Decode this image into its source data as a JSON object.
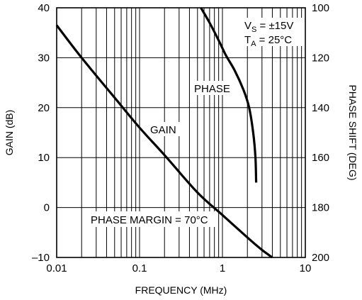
{
  "chart_data": {
    "type": "line",
    "xlabel": "FREQUENCY (MHz)",
    "ylabel_left": "GAIN (dB)",
    "ylabel_right": "PHASE SHIFT (DEG)",
    "x_scale": "log",
    "xlim": [
      0.01,
      10
    ],
    "ylim_left": [
      -10,
      40
    ],
    "ylim_right": [
      100,
      200
    ],
    "right_axis_inverted": true,
    "x_ticks": [
      {
        "value": 0.01,
        "label": "0.01"
      },
      {
        "value": 0.1,
        "label": "0.1"
      },
      {
        "value": 1,
        "label": "1"
      },
      {
        "value": 10,
        "label": "10"
      }
    ],
    "y_ticks_left": [
      {
        "value": 40,
        "label": "40"
      },
      {
        "value": 30,
        "label": "30"
      },
      {
        "value": 20,
        "label": "20"
      },
      {
        "value": 10,
        "label": "10"
      },
      {
        "value": 0,
        "label": "0"
      },
      {
        "value": -10,
        "label": "–10"
      }
    ],
    "y_ticks_right": [
      {
        "value": 100,
        "label": "100"
      },
      {
        "value": 120,
        "label": "120"
      },
      {
        "value": 140,
        "label": "140"
      },
      {
        "value": 160,
        "label": "160"
      },
      {
        "value": 180,
        "label": "180"
      },
      {
        "value": 200,
        "label": "200"
      }
    ],
    "grid": true,
    "series": [
      {
        "name": "GAIN",
        "axis": "left",
        "x": [
          0.01,
          0.02,
          0.05,
          0.1,
          0.2,
          0.5,
          1,
          2,
          3,
          4
        ],
        "y": [
          36.5,
          30,
          22,
          16,
          10.5,
          3,
          -1.5,
          -6,
          -8.5,
          -10
        ]
      },
      {
        "name": "PHASE",
        "axis": "right",
        "x": [
          0.55,
          0.7,
          0.9,
          1.1,
          1.4,
          1.8,
          2.1,
          2.35,
          2.5,
          2.55
        ],
        "y": [
          100,
          106,
          113,
          119,
          125,
          133,
          140,
          150,
          160,
          170
        ]
      }
    ],
    "annotations": {
      "gain_label": "GAIN",
      "phase_label": "PHASE",
      "phase_margin": "PHASE MARGIN = 70°C",
      "conditions_vs_main": "V",
      "conditions_vs_sub": "S",
      "conditions_vs_value": " = ±15V",
      "conditions_ta_main": "T",
      "conditions_ta_sub": "A",
      "conditions_ta_value": " = 25°C"
    }
  }
}
